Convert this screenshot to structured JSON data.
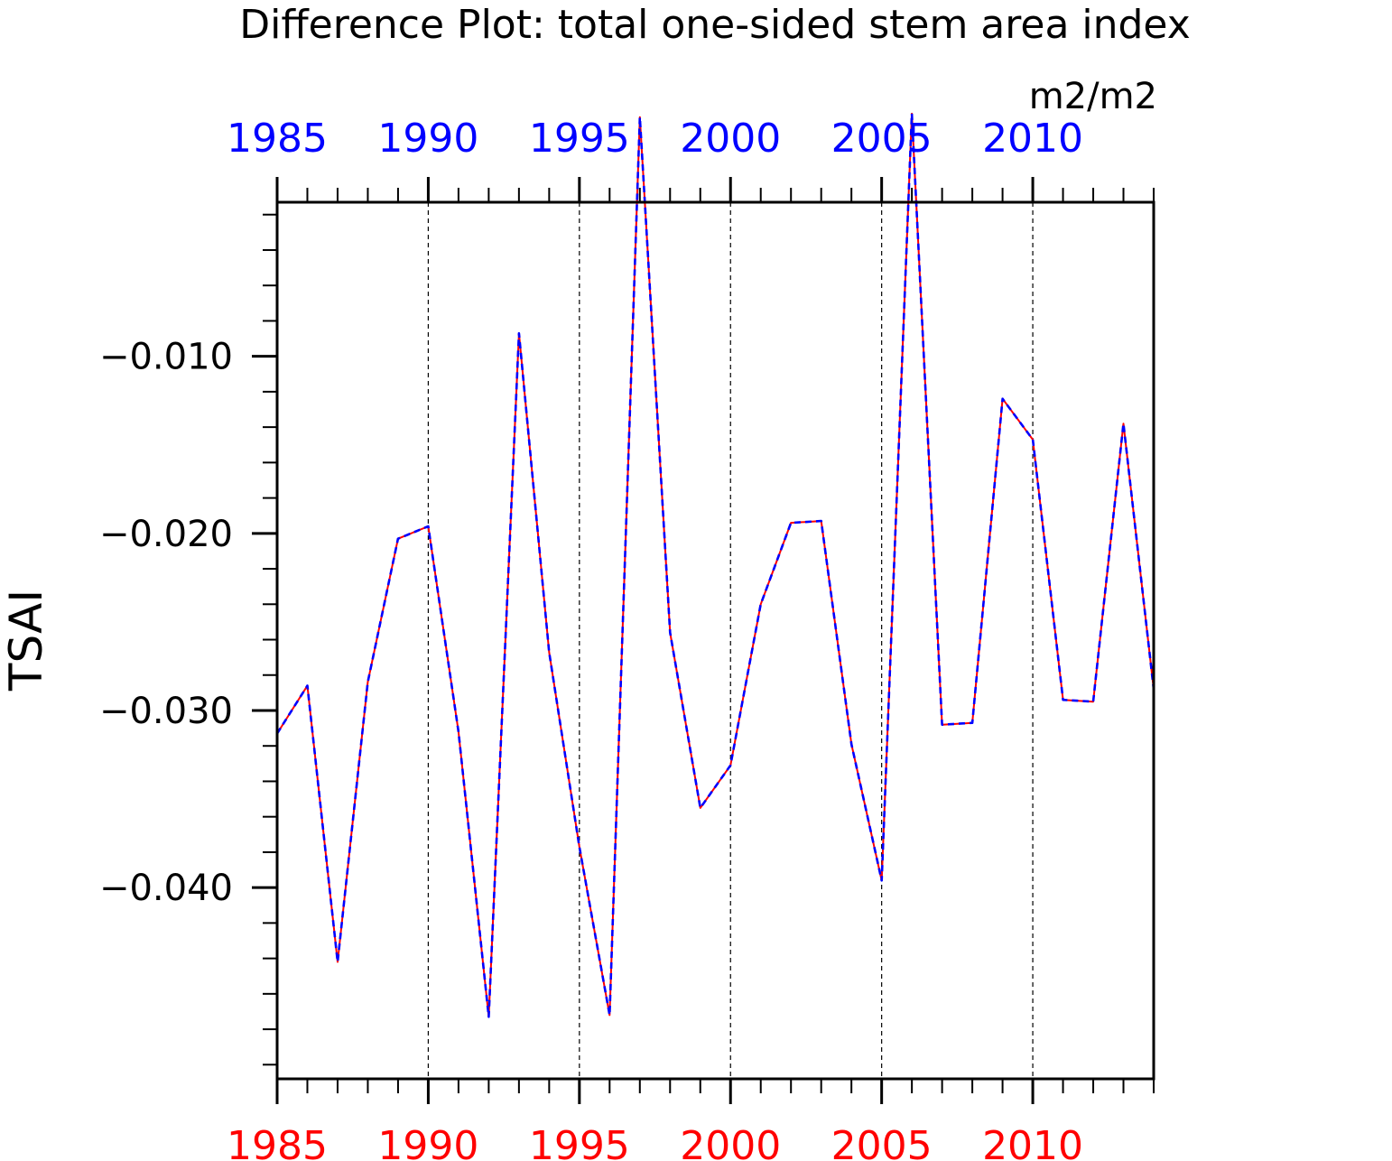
{
  "chart_data": {
    "type": "line",
    "title": "Difference Plot: total one-sided stem area index",
    "units": "m2/m2",
    "ylabel": "TSAI",
    "xlabel": "",
    "x": [
      1985,
      1986,
      1987,
      1988,
      1989,
      1990,
      1991,
      1992,
      1993,
      1994,
      1995,
      1996,
      1997,
      1998,
      1999,
      2000,
      2001,
      2002,
      2003,
      2004,
      2005,
      2006,
      2007,
      2008,
      2009,
      2010,
      2011,
      2012,
      2013,
      2014
    ],
    "series": [
      {
        "color": "#ff0000",
        "style": "solid",
        "values": [
          -0.0313,
          -0.0286,
          -0.0442,
          -0.0284,
          -0.0203,
          -0.0196,
          -0.0312,
          -0.0473,
          -0.0087,
          -0.0267,
          -0.0377,
          -0.0472,
          0.0035,
          -0.0256,
          -0.0355,
          -0.0331,
          -0.024,
          -0.0194,
          -0.0193,
          -0.0319,
          -0.0396,
          0.0037,
          -0.0308,
          -0.0307,
          -0.0124,
          -0.0147,
          -0.0294,
          -0.0295,
          -0.0138,
          -0.0288
        ]
      },
      {
        "color": "#0000ff",
        "style": "dashed",
        "values": [
          -0.0313,
          -0.0286,
          -0.0442,
          -0.0284,
          -0.0203,
          -0.0196,
          -0.0312,
          -0.0473,
          -0.0087,
          -0.0267,
          -0.0377,
          -0.0472,
          0.0035,
          -0.0256,
          -0.0355,
          -0.0331,
          -0.024,
          -0.0194,
          -0.0193,
          -0.0319,
          -0.0396,
          0.0037,
          -0.0308,
          -0.0307,
          -0.0124,
          -0.0147,
          -0.0294,
          -0.0295,
          -0.0138,
          -0.0288
        ]
      }
    ],
    "xlim": [
      1985,
      2014
    ],
    "ylim": [
      -0.0508,
      -0.0013
    ],
    "y_ticks": [
      -0.01,
      -0.02,
      -0.03,
      -0.04
    ],
    "y_tick_labels": [
      "−0.010",
      "−0.020",
      "−0.030",
      "−0.040"
    ],
    "x_ticks": [
      1985,
      1990,
      1995,
      2000,
      2005,
      2010
    ],
    "x_tick_labels_bottom": [
      "1985",
      "1990",
      "1995",
      "2000",
      "2005",
      "2010"
    ],
    "x_tick_labels_top": [
      "1985",
      "1990",
      "1995",
      "2000",
      "2005",
      "2010"
    ],
    "bottom_label_color": "#ff0000",
    "top_label_color": "#0000ff",
    "vertical_grid": "dashed at major x ticks",
    "legend": "none"
  }
}
